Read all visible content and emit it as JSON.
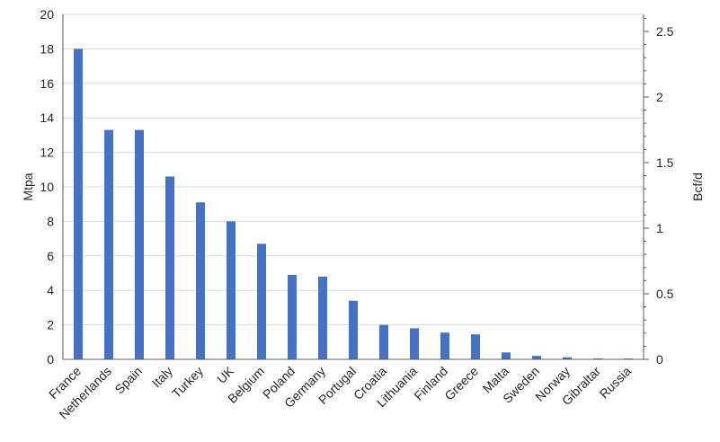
{
  "chart_data": {
    "type": "bar",
    "categories": [
      "France",
      "Netherlands",
      "Spain",
      "Italy",
      "Turkey",
      "UK",
      "Belgium",
      "Poland",
      "Germany",
      "Portugal",
      "Croatia",
      "Lithuania",
      "Finland",
      "Greece",
      "Malta",
      "Sweden",
      "Norway",
      "Gibraltar",
      "Russia"
    ],
    "values": [
      18.0,
      13.3,
      13.3,
      10.6,
      9.1,
      8.0,
      6.7,
      4.9,
      4.8,
      3.4,
      2.0,
      1.8,
      1.55,
      1.45,
      0.4,
      0.2,
      0.12,
      0.05,
      0.05
    ],
    "ylabel": "Mtpa",
    "ylabel_right": "Bcf/d",
    "ylim": [
      0,
      20
    ],
    "ylim_right": [
      0,
      2.63
    ],
    "yticks": [
      "0",
      "2",
      "4",
      "6",
      "8",
      "10",
      "12",
      "14",
      "16",
      "18",
      "20"
    ],
    "yticks_right": [
      "0",
      "0.5",
      "1",
      "1.5",
      "2",
      "2.5"
    ],
    "grid": true,
    "bar_color": "#4472C4"
  }
}
